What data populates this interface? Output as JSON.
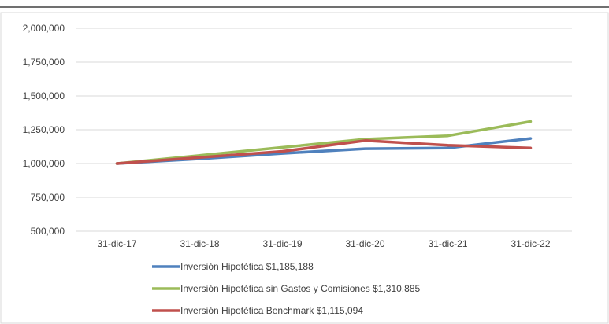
{
  "chart_data": {
    "type": "line",
    "title": "",
    "xlabel": "",
    "ylabel": "",
    "categories": [
      "31-dic-17",
      "31-dic-18",
      "31-dic-19",
      "31-dic-20",
      "31-dic-21",
      "31-dic-22"
    ],
    "yticks": [
      "500,000",
      "750,000",
      "1,000,000",
      "1,250,000",
      "1,500,000",
      "1,750,000",
      "2,000,000"
    ],
    "ylim": [
      500000,
      2000000
    ],
    "grid": true,
    "legend_placement": "bottom",
    "series": [
      {
        "name": "Inversión Hipotética $1,185,188",
        "color": "#4f81bd",
        "values": [
          1000000,
          1035000,
          1075000,
          1110000,
          1115000,
          1185188
        ]
      },
      {
        "name": "Inversión Hipotética sin Gastos y Comisiones $1,310,885",
        "color": "#9bbb59",
        "values": [
          1000000,
          1060000,
          1120000,
          1180000,
          1205000,
          1310885
        ]
      },
      {
        "name": "Inversión Hipotética Benchmark $1,115,094",
        "color": "#c0504d",
        "values": [
          1000000,
          1045000,
          1090000,
          1170000,
          1135000,
          1115094
        ]
      }
    ]
  }
}
